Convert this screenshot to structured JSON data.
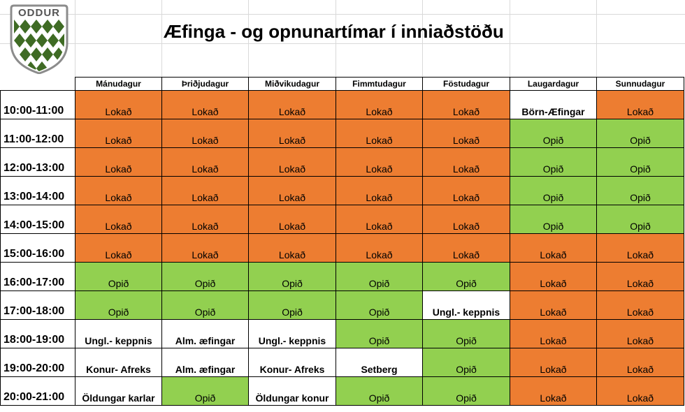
{
  "header": {
    "logo_text": "ODDUR",
    "title": "Æfinga - og opnunartímar í inniaðstöðu"
  },
  "colors": {
    "closed": "#ed7d31",
    "open": "#92d050",
    "event": "#ffffff",
    "logo_green": "#3f6b24"
  },
  "days": [
    "Mánudagur",
    "Þriðjudagur",
    "Miðvikudagur",
    "Fimmtudagur",
    "Föstudagur",
    "Laugardagur",
    "Sunnudagur"
  ],
  "rows": [
    {
      "time": "10:00-11:00",
      "cells": [
        {
          "text": "Lokað",
          "status": "closed"
        },
        {
          "text": "Lokað",
          "status": "closed"
        },
        {
          "text": "Lokað",
          "status": "closed"
        },
        {
          "text": "Lokað",
          "status": "closed"
        },
        {
          "text": "Lokað",
          "status": "closed"
        },
        {
          "text": "Börn-Æfingar",
          "status": "event"
        },
        {
          "text": "Lokað",
          "status": "closed"
        }
      ]
    },
    {
      "time": "11:00-12:00",
      "cells": [
        {
          "text": "Lokað",
          "status": "closed"
        },
        {
          "text": "Lokað",
          "status": "closed"
        },
        {
          "text": "Lokað",
          "status": "closed"
        },
        {
          "text": "Lokað",
          "status": "closed"
        },
        {
          "text": "Lokað",
          "status": "closed"
        },
        {
          "text": "Opið",
          "status": "open"
        },
        {
          "text": "Opið",
          "status": "open"
        }
      ]
    },
    {
      "time": "12:00-13:00",
      "cells": [
        {
          "text": "Lokað",
          "status": "closed"
        },
        {
          "text": "Lokað",
          "status": "closed"
        },
        {
          "text": "Lokað",
          "status": "closed"
        },
        {
          "text": "Lokað",
          "status": "closed"
        },
        {
          "text": "Lokað",
          "status": "closed"
        },
        {
          "text": "Opið",
          "status": "open"
        },
        {
          "text": "Opið",
          "status": "open"
        }
      ]
    },
    {
      "time": "13:00-14:00",
      "cells": [
        {
          "text": "Lokað",
          "status": "closed"
        },
        {
          "text": "Lokað",
          "status": "closed"
        },
        {
          "text": "Lokað",
          "status": "closed"
        },
        {
          "text": "Lokað",
          "status": "closed"
        },
        {
          "text": "Lokað",
          "status": "closed"
        },
        {
          "text": "Opið",
          "status": "open"
        },
        {
          "text": "Opið",
          "status": "open"
        }
      ]
    },
    {
      "time": "14:00-15:00",
      "cells": [
        {
          "text": "Lokað",
          "status": "closed"
        },
        {
          "text": "Lokað",
          "status": "closed"
        },
        {
          "text": "Lokað",
          "status": "closed"
        },
        {
          "text": "Lokað",
          "status": "closed"
        },
        {
          "text": "Lokað",
          "status": "closed"
        },
        {
          "text": "Opið",
          "status": "open"
        },
        {
          "text": "Opið",
          "status": "open"
        }
      ]
    },
    {
      "time": "15:00-16:00",
      "cells": [
        {
          "text": "Lokað",
          "status": "closed"
        },
        {
          "text": "Lokað",
          "status": "closed"
        },
        {
          "text": "Lokað",
          "status": "closed"
        },
        {
          "text": "Lokað",
          "status": "closed"
        },
        {
          "text": "Lokað",
          "status": "closed"
        },
        {
          "text": "Lokað",
          "status": "closed"
        },
        {
          "text": "Lokað",
          "status": "closed"
        }
      ]
    },
    {
      "time": "16:00-17:00",
      "cells": [
        {
          "text": "Opið",
          "status": "open"
        },
        {
          "text": "Opið",
          "status": "open"
        },
        {
          "text": "Opið",
          "status": "open"
        },
        {
          "text": "Opið",
          "status": "open"
        },
        {
          "text": "Opið",
          "status": "open"
        },
        {
          "text": "Lokað",
          "status": "closed"
        },
        {
          "text": "Lokað",
          "status": "closed"
        }
      ]
    },
    {
      "time": "17:00-18:00",
      "cells": [
        {
          "text": "Opið",
          "status": "open"
        },
        {
          "text": "Opið",
          "status": "open"
        },
        {
          "text": "Opið",
          "status": "open"
        },
        {
          "text": "Opið",
          "status": "open"
        },
        {
          "text": "Ungl.- keppnis",
          "status": "event"
        },
        {
          "text": "Lokað",
          "status": "closed"
        },
        {
          "text": "Lokað",
          "status": "closed"
        }
      ]
    },
    {
      "time": "18:00-19:00",
      "cells": [
        {
          "text": "Ungl.- keppnis",
          "status": "event"
        },
        {
          "text": "Alm. æfingar",
          "status": "event"
        },
        {
          "text": "Ungl.- keppnis",
          "status": "event"
        },
        {
          "text": "Opið",
          "status": "open"
        },
        {
          "text": "Opið",
          "status": "open"
        },
        {
          "text": "Lokað",
          "status": "closed"
        },
        {
          "text": "Lokað",
          "status": "closed"
        }
      ]
    },
    {
      "time": "19:00-20:00",
      "cells": [
        {
          "text": "Konur- Afreks",
          "status": "event"
        },
        {
          "text": "Alm. æfingar",
          "status": "event"
        },
        {
          "text": "Konur- Afreks",
          "status": "event"
        },
        {
          "text": "Setberg",
          "status": "event"
        },
        {
          "text": "Opið",
          "status": "open"
        },
        {
          "text": "Lokað",
          "status": "closed"
        },
        {
          "text": "Lokað",
          "status": "closed"
        }
      ]
    },
    {
      "time": "20:00-21:00",
      "cells": [
        {
          "text": "Öldungar karlar",
          "status": "event"
        },
        {
          "text": "Opið",
          "status": "open"
        },
        {
          "text": "Öldungar konur",
          "status": "event"
        },
        {
          "text": "Opið",
          "status": "open"
        },
        {
          "text": "Opið",
          "status": "open"
        },
        {
          "text": "Lokað",
          "status": "closed"
        },
        {
          "text": "Lokað",
          "status": "closed"
        }
      ]
    }
  ]
}
